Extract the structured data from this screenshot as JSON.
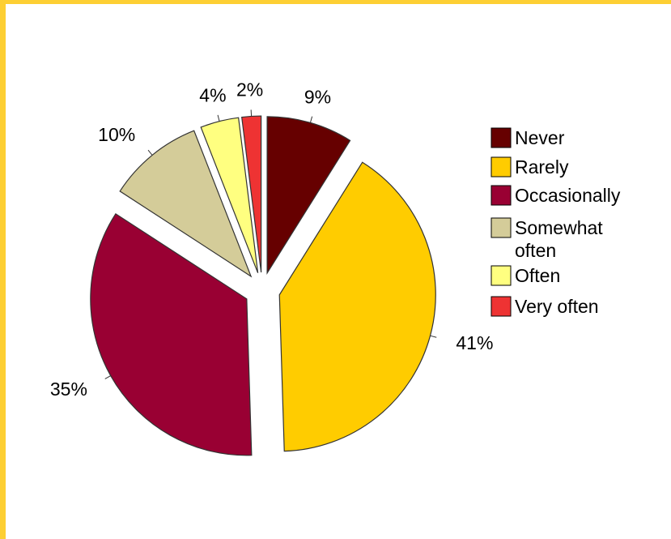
{
  "colors": {
    "frame": "#FDCF33",
    "background": "#FFFFFF",
    "slice_outline": "#333333"
  },
  "chart_data": {
    "type": "pie",
    "exploded": true,
    "legend_position": "right",
    "categories": [
      "Never",
      "Rarely",
      "Occasionally",
      "Somewhat often",
      "Often",
      "Very often"
    ],
    "values": [
      9,
      41,
      35,
      10,
      4,
      2
    ],
    "value_labels": [
      "9%",
      "41%",
      "35%",
      "10%",
      "4%",
      "2%"
    ],
    "colors": [
      "#660000",
      "#FFCC00",
      "#990033",
      "#D4CC99",
      "#FFFF80",
      "#EE3333"
    ],
    "legend": [
      {
        "lines": [
          "Never"
        ]
      },
      {
        "lines": [
          "Rarely"
        ]
      },
      {
        "lines": [
          "Occasionally"
        ]
      },
      {
        "lines": [
          "Somewhat",
          "often"
        ]
      },
      {
        "lines": [
          "Often"
        ]
      },
      {
        "lines": [
          "Very often"
        ]
      }
    ]
  }
}
